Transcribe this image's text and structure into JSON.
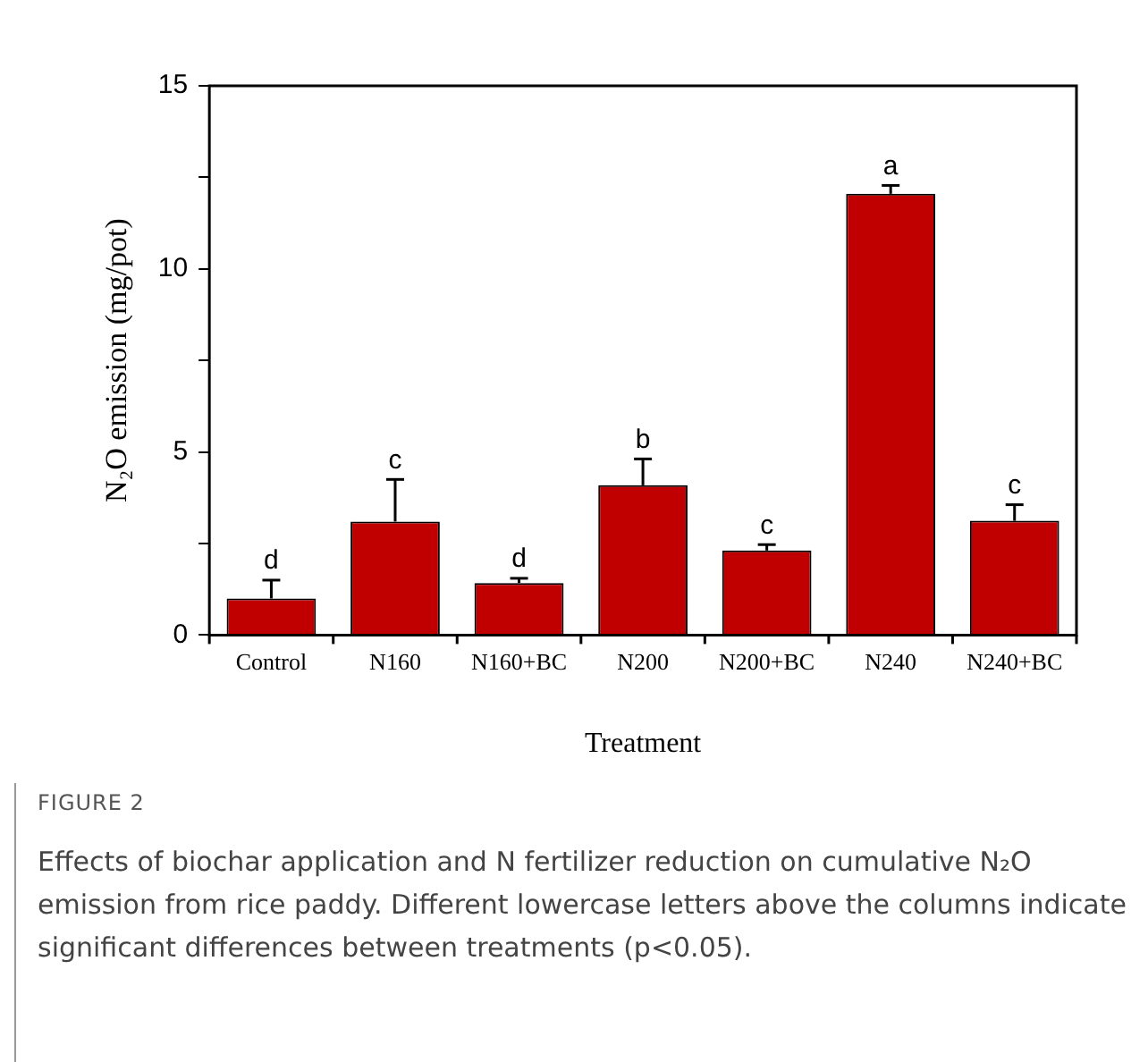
{
  "chart_data": {
    "type": "bar",
    "xlabel": "Treatment",
    "ylabel": "N₂O emission (mg/pot)",
    "categories": [
      "Control",
      "N160",
      "N160+BC",
      "N200",
      "N200+BC",
      "N240",
      "N240+BC"
    ],
    "values": [
      1.0,
      3.1,
      1.42,
      4.09,
      2.31,
      12.05,
      3.12
    ],
    "errors": [
      [
        1.0,
        1.5
      ],
      [
        3.1,
        4.25
      ],
      [
        1.42,
        1.55
      ],
      [
        4.09,
        4.81
      ],
      [
        2.31,
        2.47
      ],
      [
        12.05,
        12.28
      ],
      [
        3.12,
        3.56
      ]
    ],
    "color": "#c00000",
    "ylim": [
      0,
      15
    ],
    "yticks": [
      0,
      {
        "value": 2.5,
        "label": null
      },
      5,
      {
        "value": 7.5,
        "label": null
      },
      10,
      {
        "value": 12.5,
        "label": null
      },
      15
    ],
    "grid": false,
    "legend": false,
    "annotations": [
      {
        "text": "d",
        "x": "Control",
        "y": 1.0
      },
      {
        "text": "c",
        "x": "N160",
        "y": 3.1
      },
      {
        "text": "d",
        "x": "N160+BC",
        "y": 1.42
      },
      {
        "text": "b",
        "x": "N200",
        "y": 4.09
      },
      {
        "text": "c",
        "x": "N200+BC",
        "y": 2.31
      },
      {
        "text": "a",
        "x": "N240",
        "y": 12.05
      },
      {
        "text": "c",
        "x": "N240+BC",
        "y": 3.12
      },
      "FIGURE 2",
      "Effects of biochar application and N fertilizer reduction on cumulative N₂O emission from rice paddy. Different lowercase letters above the columns indicate significant differences between treatments (p<0.05)."
    ]
  }
}
